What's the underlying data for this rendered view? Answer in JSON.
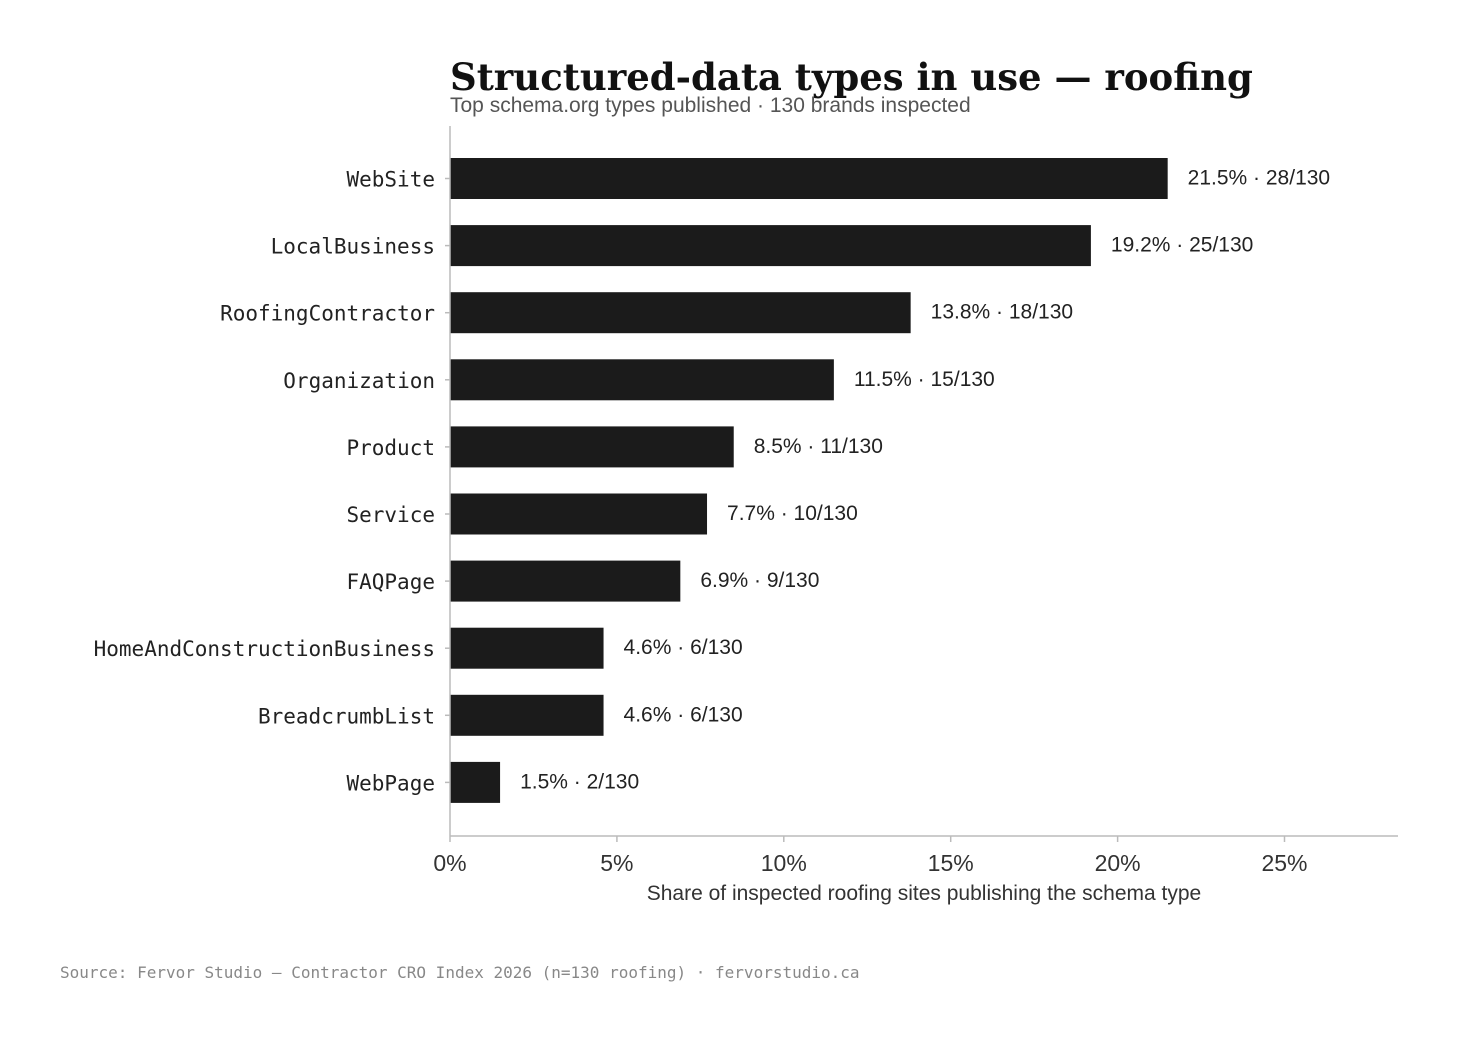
{
  "chart_data": {
    "type": "bar",
    "orientation": "horizontal",
    "title": "Structured-data types in use — roofing",
    "subtitle": "Top schema.org types published · 130 brands inspected",
    "xlabel": "Share of inspected roofing sites publishing the schema type",
    "ylabel": "",
    "categories": [
      "WebSite",
      "LocalBusiness",
      "RoofingContractor",
      "Organization",
      "Product",
      "Service",
      "FAQPage",
      "HomeAndConstructionBusiness",
      "BreadcrumbList",
      "WebPage"
    ],
    "values": [
      21.5,
      19.2,
      13.8,
      11.5,
      8.5,
      7.7,
      6.9,
      4.6,
      4.6,
      1.5
    ],
    "value_labels": [
      "21.5% · 28/130",
      "19.2% · 25/130",
      "13.8% · 18/130",
      "11.5% · 15/130",
      "8.5% · 11/130",
      "7.7% · 10/130",
      "6.9% · 9/130",
      "4.6% · 6/130",
      "4.6% · 6/130",
      "1.5% · 2/130"
    ],
    "xlim": [
      0,
      28.4
    ],
    "xticks": [
      0,
      5,
      10,
      15,
      20,
      25
    ],
    "xtick_labels": [
      "0%",
      "5%",
      "10%",
      "15%",
      "20%",
      "25%"
    ],
    "bar_color": "#1b1b1b",
    "grid": false,
    "legend": "none"
  },
  "source": "Source: Fervor Studio — Contractor CRO Index 2026 (n=130 roofing) · fervorstudio.ca"
}
